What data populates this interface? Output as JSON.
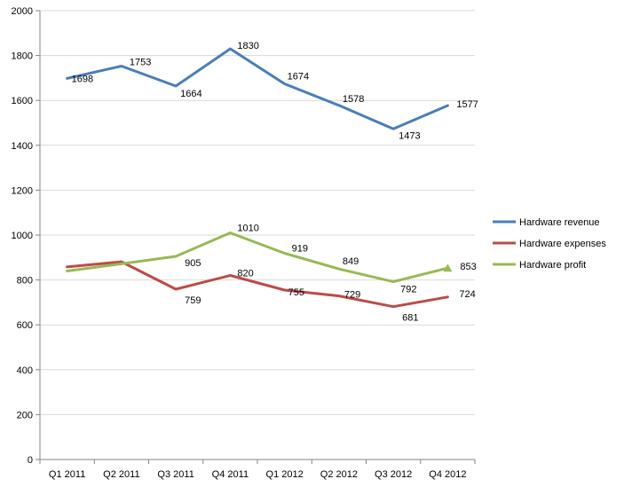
{
  "chart_data": {
    "type": "line",
    "categories": [
      "Q1 2011",
      "Q2 2011",
      "Q3 2011",
      "Q4 2011",
      "Q1 2012",
      "Q2 2012",
      "Q3 2012",
      "Q4 2012"
    ],
    "ylim": [
      0,
      2000
    ],
    "yticks": [
      0,
      200,
      400,
      600,
      800,
      1000,
      1200,
      1400,
      1600,
      1800,
      2000
    ],
    "grid": true,
    "legend_position": "right",
    "series": [
      {
        "name": "Hardware revenue",
        "color": "#4a7ebb",
        "values": [
          1698,
          1753,
          1664,
          1830,
          1674,
          1578,
          1473,
          1577
        ],
        "labels": [
          "1698",
          "1753",
          "1664",
          "1830",
          "1674",
          "1578",
          "1473",
          "1577"
        ]
      },
      {
        "name": "Hardware expenses",
        "color": "#be4b48",
        "values": [
          858,
          881,
          759,
          820,
          755,
          729,
          681,
          724
        ],
        "labels": [
          "",
          "",
          "759",
          "820",
          "755",
          "729",
          "681",
          "724"
        ]
      },
      {
        "name": "Hardware profit",
        "color": "#98b954",
        "values": [
          840,
          872,
          905,
          1010,
          919,
          849,
          792,
          853
        ],
        "labels": [
          "",
          "",
          "905",
          "1010",
          "919",
          "849",
          "792",
          "853"
        ],
        "end_marker": "triangle"
      }
    ]
  }
}
